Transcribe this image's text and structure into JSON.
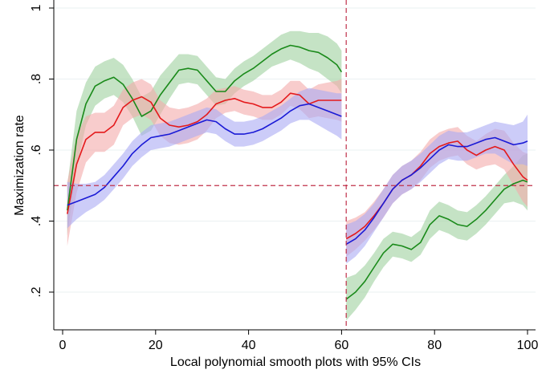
{
  "chart_data": {
    "type": "line",
    "title": "",
    "xlabel": "Local polynomial smooth plots with 95% CIs",
    "ylabel": "Maximization rate",
    "xlim": [
      0,
      100
    ],
    "ylim": [
      0.1,
      1.0
    ],
    "xticks": [
      0,
      20,
      40,
      60,
      80,
      100
    ],
    "xtick_labels": [
      "0",
      "20",
      "40",
      "60",
      "80",
      "100"
    ],
    "yticks": [
      0.2,
      0.4,
      0.6,
      0.8,
      1.0
    ],
    "ytick_labels": [
      ".2",
      ".4",
      ".6",
      ".8",
      "1"
    ],
    "grid": "horizontal",
    "reference_lines": {
      "x": 61,
      "y": 0.5,
      "color": "#c0304a"
    },
    "series": [
      {
        "name": "green",
        "color": "#1a8a1a",
        "band_color": "#9ed09e",
        "segments": [
          {
            "x": [
              1,
              3,
              5,
              7,
              9,
              11,
              13,
              15,
              17,
              19,
              21,
              23,
              25,
              27,
              29,
              31,
              33,
              35,
              37,
              39,
              41,
              43,
              45,
              47,
              49,
              51,
              53,
              55,
              57,
              59,
              60
            ],
            "y": [
              0.43,
              0.63,
              0.73,
              0.78,
              0.795,
              0.805,
              0.785,
              0.745,
              0.695,
              0.71,
              0.755,
              0.79,
              0.825,
              0.83,
              0.825,
              0.795,
              0.765,
              0.765,
              0.795,
              0.815,
              0.83,
              0.85,
              0.87,
              0.885,
              0.895,
              0.89,
              0.88,
              0.875,
              0.86,
              0.84,
              0.82
            ],
            "lower": [
              0.36,
              0.55,
              0.67,
              0.725,
              0.745,
              0.755,
              0.735,
              0.695,
              0.64,
              0.655,
              0.7,
              0.745,
              0.785,
              0.79,
              0.785,
              0.755,
              0.725,
              0.73,
              0.76,
              0.78,
              0.795,
              0.815,
              0.835,
              0.845,
              0.855,
              0.845,
              0.83,
              0.82,
              0.8,
              0.78,
              0.76
            ],
            "upper": [
              0.5,
              0.71,
              0.79,
              0.835,
              0.85,
              0.86,
              0.84,
              0.8,
              0.75,
              0.765,
              0.81,
              0.84,
              0.87,
              0.87,
              0.865,
              0.835,
              0.805,
              0.8,
              0.83,
              0.85,
              0.865,
              0.885,
              0.905,
              0.925,
              0.935,
              0.935,
              0.93,
              0.93,
              0.92,
              0.9,
              0.88
            ]
          },
          {
            "x": [
              61,
              63,
              65,
              67,
              69,
              71,
              73,
              75,
              77,
              79,
              81,
              83,
              85,
              87,
              89,
              91,
              93,
              95,
              97,
              99,
              100
            ],
            "y": [
              0.18,
              0.2,
              0.23,
              0.27,
              0.31,
              0.335,
              0.33,
              0.32,
              0.34,
              0.39,
              0.415,
              0.405,
              0.39,
              0.385,
              0.405,
              0.43,
              0.46,
              0.49,
              0.505,
              0.515,
              0.51
            ],
            "lower": [
              0.12,
              0.15,
              0.185,
              0.23,
              0.27,
              0.3,
              0.295,
              0.285,
              0.305,
              0.35,
              0.375,
              0.365,
              0.35,
              0.345,
              0.365,
              0.39,
              0.42,
              0.45,
              0.455,
              0.445,
              0.43
            ],
            "upper": [
              0.24,
              0.25,
              0.275,
              0.31,
              0.35,
              0.37,
              0.365,
              0.355,
              0.375,
              0.43,
              0.455,
              0.445,
              0.43,
              0.425,
              0.445,
              0.47,
              0.5,
              0.53,
              0.555,
              0.585,
              0.59
            ]
          }
        ]
      },
      {
        "name": "red",
        "color": "#e41a1c",
        "band_color": "#f4aaaa",
        "segments": [
          {
            "x": [
              1,
              3,
              5,
              7,
              9,
              11,
              13,
              15,
              17,
              19,
              21,
              23,
              25,
              27,
              29,
              31,
              33,
              35,
              37,
              39,
              41,
              43,
              45,
              47,
              49,
              51,
              53,
              55,
              57,
              59,
              60
            ],
            "y": [
              0.42,
              0.56,
              0.63,
              0.65,
              0.65,
              0.67,
              0.72,
              0.74,
              0.75,
              0.735,
              0.69,
              0.67,
              0.665,
              0.67,
              0.68,
              0.7,
              0.73,
              0.74,
              0.745,
              0.735,
              0.73,
              0.72,
              0.72,
              0.735,
              0.76,
              0.755,
              0.73,
              0.74,
              0.74,
              0.74,
              0.74
            ],
            "lower": [
              0.33,
              0.48,
              0.565,
              0.595,
              0.595,
              0.615,
              0.67,
              0.69,
              0.7,
              0.685,
              0.64,
              0.62,
              0.615,
              0.62,
              0.63,
              0.655,
              0.69,
              0.705,
              0.71,
              0.7,
              0.695,
              0.685,
              0.685,
              0.7,
              0.725,
              0.715,
              0.69,
              0.695,
              0.69,
              0.685,
              0.68
            ],
            "upper": [
              0.51,
              0.64,
              0.695,
              0.705,
              0.705,
              0.725,
              0.77,
              0.79,
              0.8,
              0.785,
              0.74,
              0.72,
              0.715,
              0.72,
              0.73,
              0.745,
              0.77,
              0.775,
              0.78,
              0.77,
              0.765,
              0.755,
              0.755,
              0.77,
              0.795,
              0.795,
              0.77,
              0.785,
              0.79,
              0.795,
              0.8
            ]
          },
          {
            "x": [
              61,
              63,
              65,
              67,
              69,
              71,
              73,
              75,
              77,
              79,
              81,
              83,
              85,
              87,
              89,
              91,
              93,
              95,
              97,
              99,
              100
            ],
            "y": [
              0.35,
              0.365,
              0.385,
              0.415,
              0.45,
              0.49,
              0.515,
              0.53,
              0.555,
              0.59,
              0.61,
              0.62,
              0.625,
              0.6,
              0.585,
              0.6,
              0.61,
              0.6,
              0.56,
              0.525,
              0.515
            ],
            "lower": [
              0.3,
              0.32,
              0.345,
              0.375,
              0.41,
              0.45,
              0.475,
              0.49,
              0.515,
              0.55,
              0.57,
              0.58,
              0.585,
              0.56,
              0.545,
              0.555,
              0.56,
              0.545,
              0.5,
              0.455,
              0.44
            ],
            "upper": [
              0.4,
              0.41,
              0.425,
              0.455,
              0.49,
              0.53,
              0.555,
              0.57,
              0.595,
              0.63,
              0.65,
              0.66,
              0.665,
              0.64,
              0.625,
              0.645,
              0.66,
              0.655,
              0.62,
              0.595,
              0.59
            ]
          }
        ]
      },
      {
        "name": "blue",
        "color": "#1a1ad6",
        "band_color": "#aaaaf4",
        "segments": [
          {
            "x": [
              1,
              3,
              5,
              7,
              9,
              11,
              13,
              15,
              17,
              19,
              21,
              23,
              25,
              27,
              29,
              31,
              33,
              35,
              37,
              39,
              41,
              43,
              45,
              47,
              49,
              51,
              53,
              55,
              57,
              59,
              60
            ],
            "y": [
              0.445,
              0.455,
              0.465,
              0.475,
              0.495,
              0.525,
              0.555,
              0.59,
              0.615,
              0.635,
              0.64,
              0.645,
              0.655,
              0.665,
              0.675,
              0.685,
              0.68,
              0.66,
              0.645,
              0.645,
              0.65,
              0.66,
              0.675,
              0.69,
              0.71,
              0.725,
              0.73,
              0.72,
              0.71,
              0.7,
              0.695
            ],
            "lower": [
              0.38,
              0.405,
              0.425,
              0.44,
              0.46,
              0.49,
              0.52,
              0.555,
              0.58,
              0.6,
              0.605,
              0.61,
              0.62,
              0.63,
              0.64,
              0.65,
              0.645,
              0.625,
              0.61,
              0.61,
              0.615,
              0.625,
              0.64,
              0.655,
              0.675,
              0.685,
              0.685,
              0.67,
              0.655,
              0.64,
              0.63
            ],
            "upper": [
              0.51,
              0.505,
              0.505,
              0.51,
              0.53,
              0.56,
              0.59,
              0.625,
              0.65,
              0.67,
              0.675,
              0.68,
              0.69,
              0.7,
              0.71,
              0.72,
              0.715,
              0.695,
              0.68,
              0.68,
              0.685,
              0.695,
              0.71,
              0.725,
              0.745,
              0.765,
              0.775,
              0.77,
              0.765,
              0.76,
              0.76
            ]
          },
          {
            "x": [
              61,
              63,
              65,
              67,
              69,
              71,
              73,
              75,
              77,
              79,
              81,
              83,
              85,
              87,
              89,
              91,
              93,
              95,
              97,
              99,
              100
            ],
            "y": [
              0.335,
              0.35,
              0.375,
              0.41,
              0.45,
              0.49,
              0.515,
              0.53,
              0.55,
              0.575,
              0.6,
              0.615,
              0.61,
              0.61,
              0.62,
              0.63,
              0.635,
              0.625,
              0.615,
              0.62,
              0.625
            ],
            "lower": [
              0.28,
              0.3,
              0.33,
              0.37,
              0.41,
              0.45,
              0.475,
              0.49,
              0.51,
              0.535,
              0.56,
              0.575,
              0.57,
              0.57,
              0.58,
              0.59,
              0.59,
              0.575,
              0.56,
              0.56,
              0.555
            ],
            "upper": [
              0.39,
              0.4,
              0.42,
              0.45,
              0.49,
              0.53,
              0.555,
              0.57,
              0.59,
              0.615,
              0.64,
              0.655,
              0.65,
              0.65,
              0.66,
              0.67,
              0.68,
              0.675,
              0.67,
              0.68,
              0.7
            ]
          }
        ]
      }
    ]
  }
}
